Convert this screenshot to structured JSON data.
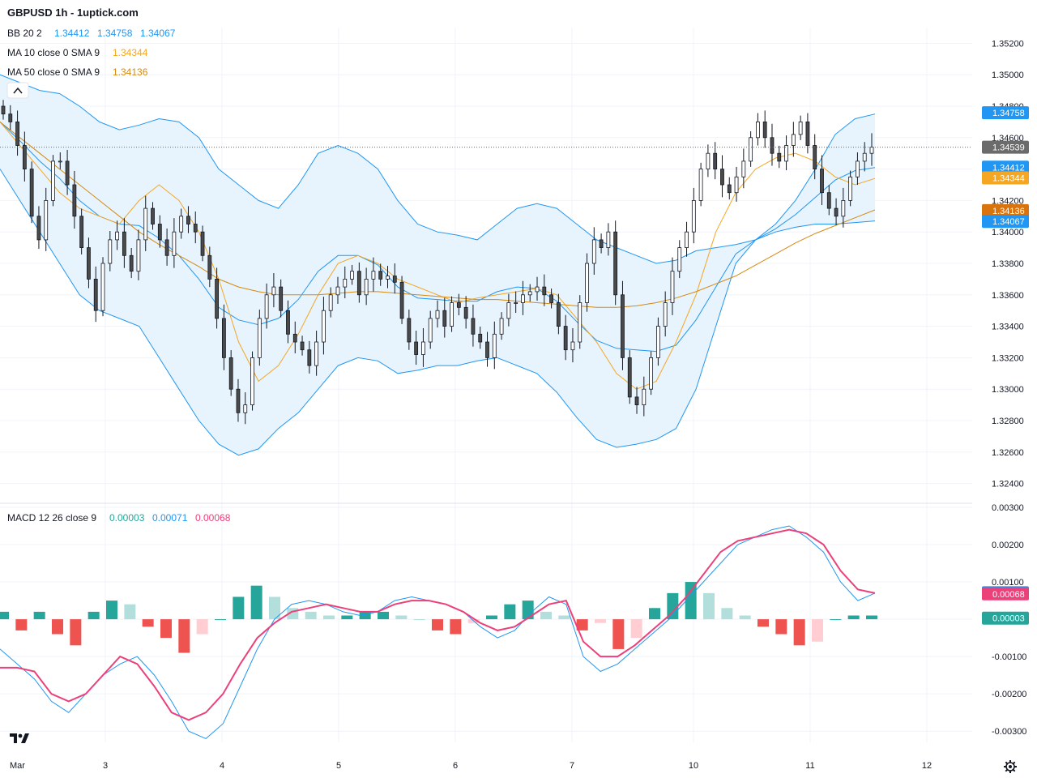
{
  "header": {
    "title": "GBPUSD 1h - 1uptick.com",
    "bb": {
      "label": "BB 20 2",
      "v1": "1.34412",
      "v2": "1.34758",
      "v3": "1.34067"
    },
    "ma10": {
      "label": "MA 10 close 0 SMA 9",
      "value": "1.34344"
    },
    "ma50": {
      "label": "MA 50 close 0 SMA 9",
      "value": "1.34136"
    },
    "macd": {
      "label": "MACD 12 26 close 9",
      "v1": "0.00003",
      "v2": "0.00071",
      "v3": "0.00068"
    }
  },
  "colors": {
    "up": "#ffffff",
    "down": "#4a4a4a",
    "wick": "#131722",
    "bb_line": "#2196f3",
    "bb_fill": "#e3f2fd",
    "ma10": "#f5a623",
    "ma50": "#d68910",
    "macd_line": "#2196f3",
    "signal_line": "#ec407a",
    "hist_up_strong": "#26a69a",
    "hist_up_weak": "#b2dfdb",
    "hist_dn_strong": "#ef5350",
    "hist_dn_weak": "#ffcdd2",
    "last_price": "#6b6b6b",
    "bb_badge": "#2196f3",
    "ma10_badge": "#f5a623",
    "ma50_badge": "#d9730d"
  },
  "axes": {
    "price_ticks": [
      "1.35200",
      "1.35000",
      "1.34800",
      "1.34600",
      "1.34400",
      "1.34200",
      "1.34000",
      "1.33800",
      "1.33600",
      "1.33400",
      "1.33200",
      "1.33000",
      "1.32800",
      "1.32600",
      "1.32400"
    ],
    "macd_ticks": [
      "0.00300",
      "0.00200",
      "0.00100",
      "0.00000",
      "-0.00100",
      "-0.00200",
      "-0.00300"
    ],
    "x_ticks": [
      "Mar",
      "3",
      "4",
      "5",
      "6",
      "7",
      "10",
      "11",
      "12"
    ]
  },
  "badges": {
    "bb_upper": "1.34758",
    "last": "1.34539",
    "bb_mid": "1.34412",
    "ma10": "1.34344",
    "ma50": "1.34136",
    "bb_lower": "1.34067",
    "macd": "0.00071",
    "signal": "0.00068",
    "hist": "0.00003"
  },
  "chart_data": [
    {
      "type": "candlestick",
      "title": "GBPUSD 1h - 1uptick.com",
      "y_range": [
        1.323,
        1.353
      ],
      "x_sessions": [
        "Mar",
        "3",
        "4",
        "5",
        "6",
        "7",
        "10",
        "11",
        "12"
      ],
      "close_path": [
        1.3475,
        1.347,
        1.3455,
        1.344,
        1.341,
        1.3395,
        1.342,
        1.3445,
        1.3445,
        1.343,
        1.341,
        1.339,
        1.337,
        1.335,
        1.338,
        1.3395,
        1.34,
        1.3385,
        1.3375,
        1.3395,
        1.3415,
        1.3405,
        1.3395,
        1.3385,
        1.34,
        1.341,
        1.3405,
        1.34,
        1.3385,
        1.337,
        1.3345,
        1.332,
        1.33,
        1.3285,
        1.329,
        1.332,
        1.3345,
        1.336,
        1.3365,
        1.335,
        1.3335,
        1.333,
        1.3325,
        1.3315,
        1.333,
        1.335,
        1.336,
        1.3365,
        1.337,
        1.3375,
        1.336,
        1.337,
        1.3375,
        1.337,
        1.3372,
        1.3368,
        1.3345,
        1.333,
        1.3322,
        1.333,
        1.3345,
        1.335,
        1.334,
        1.3355,
        1.3352,
        1.3345,
        1.3335,
        1.333,
        1.332,
        1.3335,
        1.3345,
        1.3355,
        1.3355,
        1.336,
        1.3362,
        1.3365,
        1.336,
        1.3355,
        1.334,
        1.3325,
        1.333,
        1.3355,
        1.338,
        1.3395,
        1.339,
        1.34,
        1.336,
        1.332,
        1.3295,
        1.329,
        1.33,
        1.332,
        1.334,
        1.3355,
        1.3375,
        1.339,
        1.34,
        1.342,
        1.344,
        1.345,
        1.344,
        1.343,
        1.3425,
        1.3435,
        1.3445,
        1.346,
        1.347,
        1.346,
        1.345,
        1.3445,
        1.3455,
        1.3462,
        1.347,
        1.3455,
        1.344,
        1.3425,
        1.3415,
        1.341,
        1.342,
        1.3435,
        1.3445,
        1.345,
        1.3454
      ],
      "bb_upper": [
        1.35,
        1.3495,
        1.349,
        1.3488,
        1.348,
        1.347,
        1.3465,
        1.3468,
        1.3472,
        1.347,
        1.346,
        1.344,
        1.343,
        1.342,
        1.3415,
        1.343,
        1.345,
        1.3455,
        1.345,
        1.344,
        1.342,
        1.3405,
        1.34,
        1.3398,
        1.3395,
        1.3405,
        1.3415,
        1.3418,
        1.3415,
        1.3405,
        1.3395,
        1.339,
        1.3385,
        1.338,
        1.3382,
        1.3388,
        1.339,
        1.3392,
        1.3395,
        1.3405,
        1.342,
        1.344,
        1.3462,
        1.3472,
        1.3475
      ],
      "bb_lower": [
        1.344,
        1.342,
        1.34,
        1.338,
        1.336,
        1.335,
        1.3345,
        1.334,
        1.332,
        1.33,
        1.328,
        1.3265,
        1.3258,
        1.3262,
        1.3275,
        1.3285,
        1.33,
        1.3315,
        1.332,
        1.3318,
        1.331,
        1.3312,
        1.3315,
        1.3315,
        1.3318,
        1.332,
        1.3315,
        1.331,
        1.3298,
        1.3282,
        1.3268,
        1.3263,
        1.3265,
        1.3268,
        1.3275,
        1.33,
        1.334,
        1.338,
        1.3395,
        1.34,
        1.3403,
        1.3405,
        1.3405,
        1.3406,
        1.3407
      ],
      "bb_mid": [
        1.347,
        1.3458,
        1.3445,
        1.3434,
        1.342,
        1.341,
        1.3405,
        1.3404,
        1.3396,
        1.3385,
        1.337,
        1.3352,
        1.3344,
        1.3341,
        1.3345,
        1.3357,
        1.3375,
        1.3385,
        1.3385,
        1.3379,
        1.3365,
        1.3358,
        1.3357,
        1.3356,
        1.3356,
        1.3362,
        1.3365,
        1.3364,
        1.3356,
        1.3343,
        1.3331,
        1.3326,
        1.3325,
        1.3324,
        1.3328,
        1.3344,
        1.3365,
        1.3386,
        1.3395,
        1.3402,
        1.3411,
        1.3422,
        1.3433,
        1.3439,
        1.3441
      ],
      "ma10": [
        1.347,
        1.3455,
        1.344,
        1.3425,
        1.3415,
        1.341,
        1.3405,
        1.342,
        1.343,
        1.342,
        1.34,
        1.337,
        1.333,
        1.3305,
        1.3315,
        1.3335,
        1.336,
        1.338,
        1.3385,
        1.338,
        1.337,
        1.3365,
        1.336,
        1.3355,
        1.3358,
        1.336,
        1.3362,
        1.3364,
        1.336,
        1.3345,
        1.333,
        1.331,
        1.33,
        1.3305,
        1.333,
        1.336,
        1.34,
        1.3425,
        1.344,
        1.3447,
        1.345,
        1.3445,
        1.3435,
        1.343,
        1.3434
      ],
      "ma50": [
        1.347,
        1.346,
        1.345,
        1.344,
        1.343,
        1.342,
        1.341,
        1.34,
        1.3392,
        1.3385,
        1.3378,
        1.337,
        1.3365,
        1.3362,
        1.336,
        1.336,
        1.336,
        1.3361,
        1.3362,
        1.3362,
        1.3361,
        1.336,
        1.3359,
        1.3358,
        1.3357,
        1.3357,
        1.3356,
        1.3355,
        1.3354,
        1.3353,
        1.3352,
        1.3352,
        1.3353,
        1.3355,
        1.3358,
        1.3362,
        1.3367,
        1.3372,
        1.3379,
        1.3386,
        1.3393,
        1.3399,
        1.3404,
        1.3409,
        1.3414
      ]
    },
    {
      "type": "line",
      "title": "MACD 12 26 close 9",
      "y_range": [
        -0.0033,
        0.003
      ],
      "macd_line": [
        -0.0008,
        -0.0012,
        -0.0016,
        -0.0022,
        -0.0025,
        -0.002,
        -0.0015,
        -0.0012,
        -0.001,
        -0.0015,
        -0.0022,
        -0.003,
        -0.0032,
        -0.0028,
        -0.0018,
        -0.0008,
        0.0,
        0.0004,
        0.0005,
        0.0004,
        0.0002,
        0.0001,
        0.0002,
        0.0005,
        0.0006,
        0.0005,
        0.0004,
        0.0002,
        -0.0002,
        -0.0005,
        -0.0003,
        0.0002,
        0.0006,
        0.0004,
        -0.001,
        -0.0014,
        -0.0012,
        -0.0008,
        -0.0004,
        0.0,
        0.0005,
        0.001,
        0.0015,
        0.002,
        0.0022,
        0.0024,
        0.0025,
        0.0022,
        0.0018,
        0.001,
        0.0005,
        0.0007
      ],
      "signal_line": [
        -0.0013,
        -0.0013,
        -0.0014,
        -0.002,
        -0.0022,
        -0.002,
        -0.0015,
        -0.001,
        -0.0012,
        -0.0018,
        -0.0025,
        -0.0027,
        -0.0025,
        -0.002,
        -0.0012,
        -0.0005,
        -0.0001,
        0.0002,
        0.0003,
        0.0004,
        0.0003,
        0.0002,
        0.0002,
        0.0004,
        0.0005,
        0.0005,
        0.0004,
        0.0002,
        -0.0001,
        -0.0003,
        -0.0002,
        0.0001,
        0.0004,
        0.0005,
        -0.0006,
        -0.001,
        -0.001,
        -0.0007,
        -0.0003,
        0.0001,
        0.0006,
        0.0012,
        0.0018,
        0.0021,
        0.0022,
        0.0023,
        0.0024,
        0.0023,
        0.002,
        0.0013,
        0.0008,
        0.0007
      ],
      "histogram": [
        0.0002,
        -0.0003,
        0.0002,
        -0.0004,
        -0.0007,
        0.0002,
        0.0005,
        0.0004,
        -0.0002,
        -0.0005,
        -0.0009,
        -0.0004,
        0.0,
        0.0006,
        0.0009,
        0.0006,
        0.0003,
        0.0002,
        0.0001,
        0.0001,
        0.0002,
        0.0002,
        0.0001,
        0.0,
        -0.0003,
        -0.0004,
        -0.0001,
        0.0001,
        0.0004,
        0.0005,
        0.0002,
        0.0001,
        -0.0003,
        -0.0001,
        -0.0008,
        -0.0005,
        0.0003,
        0.0007,
        0.001,
        0.0007,
        0.0003,
        0.0001,
        -0.0002,
        -0.0004,
        -0.0007,
        -0.0006,
        0.0,
        0.0001,
        0.0001
      ]
    }
  ]
}
